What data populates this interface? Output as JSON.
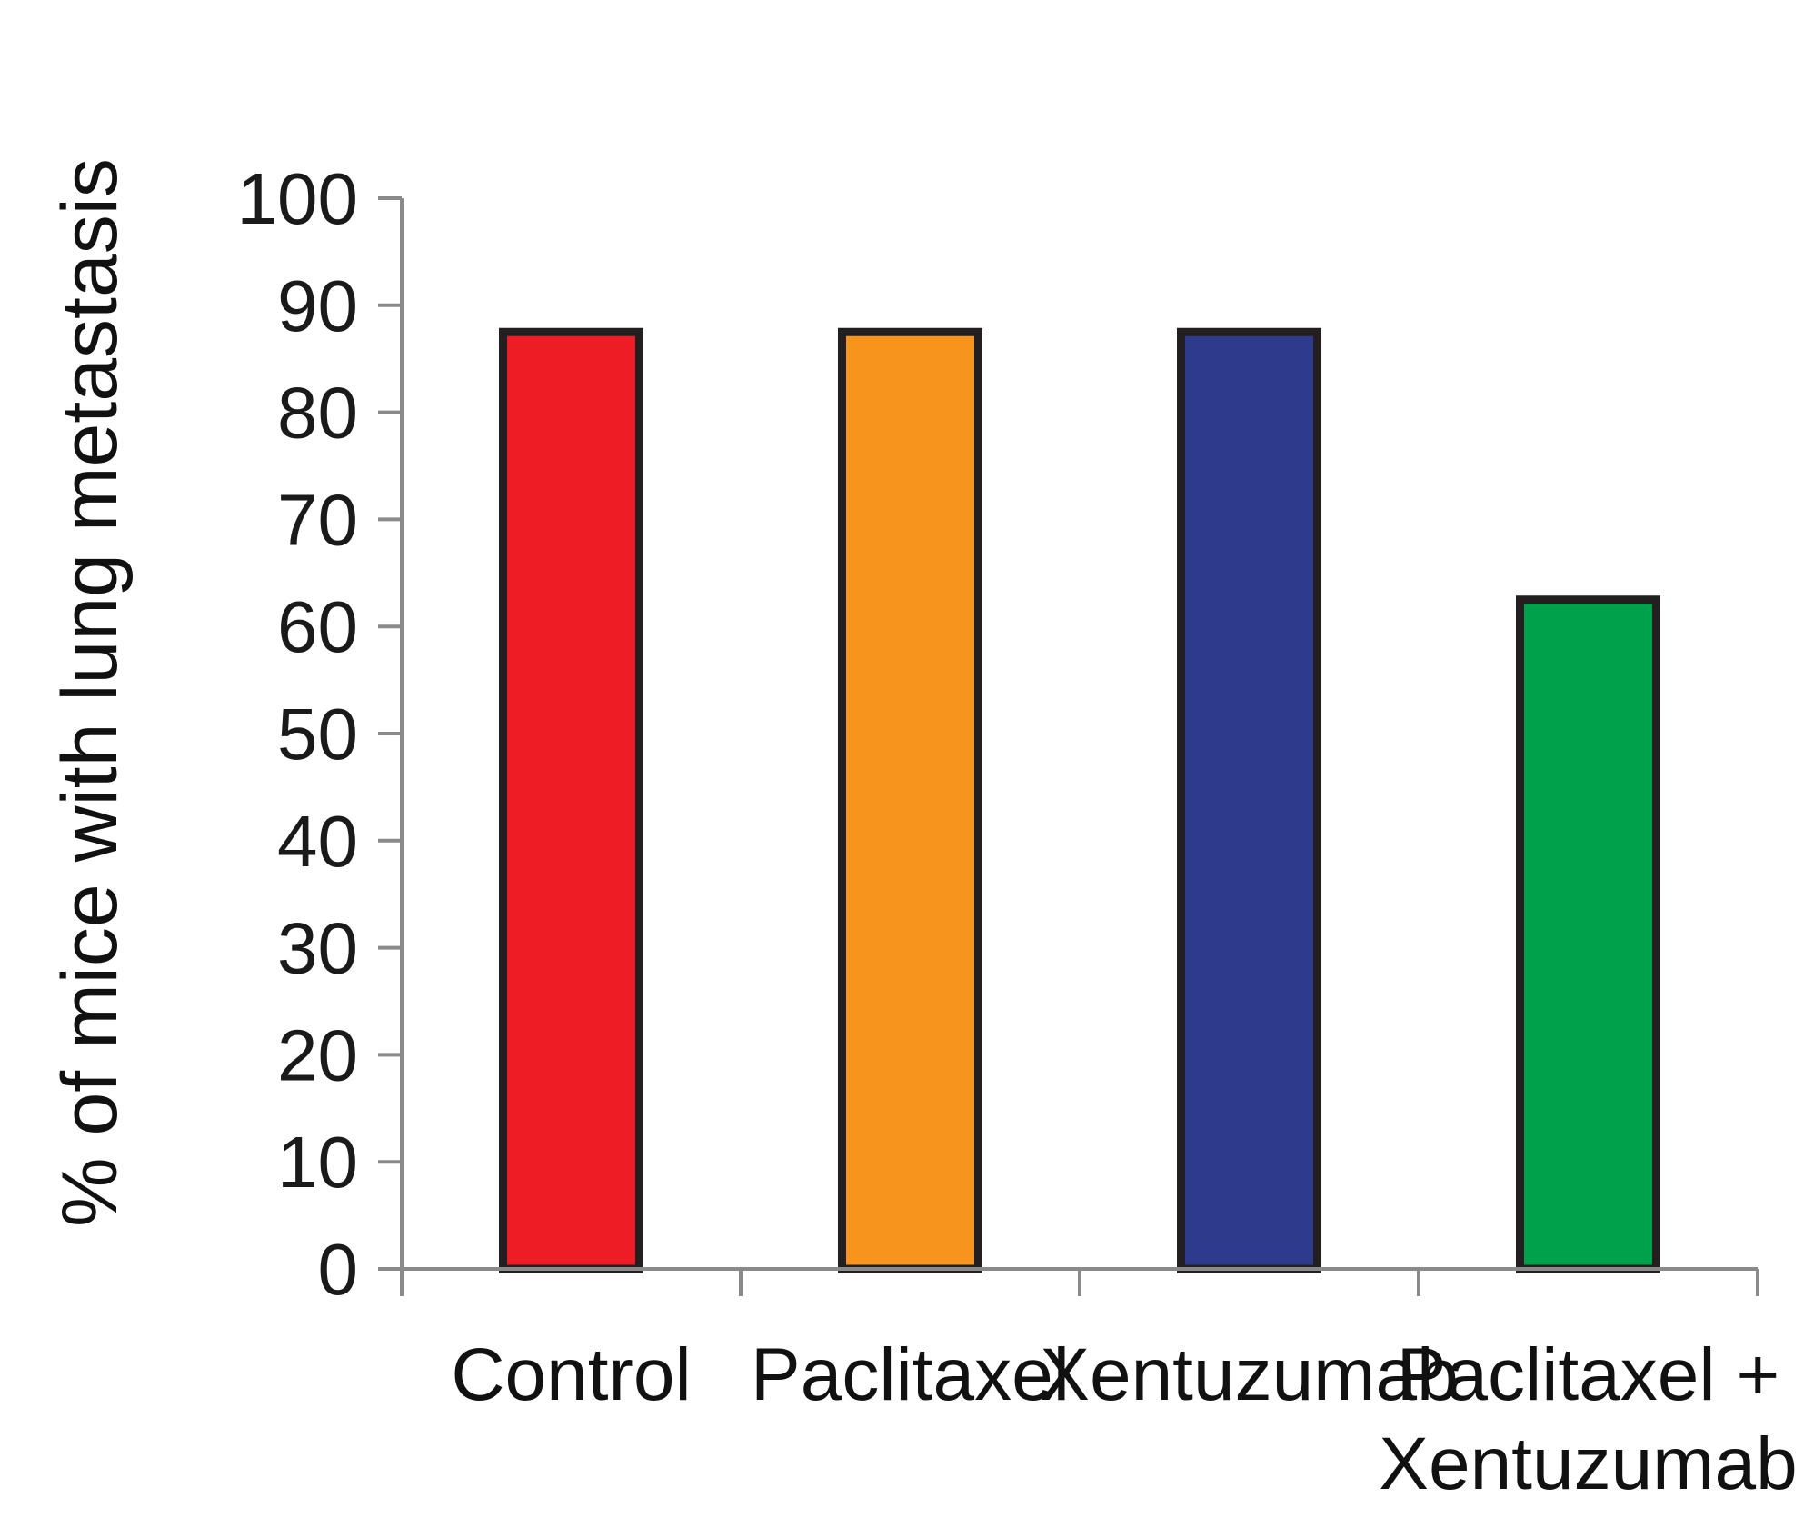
{
  "chart_data": {
    "type": "bar",
    "ylabel": "% of mice with lung metastasis",
    "xlabel": "",
    "title": "",
    "ylim": [
      0,
      100
    ],
    "yticks": [
      "0",
      "10",
      "20",
      "30",
      "40",
      "50",
      "60",
      "70",
      "80",
      "90",
      "100"
    ],
    "categories": [
      [
        "Control"
      ],
      [
        "Paclitaxel"
      ],
      [
        "Xentuzumab"
      ],
      [
        "Paclitaxel +",
        "Xentuzumab"
      ]
    ],
    "values": [
      87.5,
      87.5,
      87.5,
      62.5
    ],
    "colors": [
      "#ee1c25",
      "#f7941d",
      "#2e3a8c",
      "#00a14b"
    ],
    "grid": false,
    "legend": "none"
  }
}
